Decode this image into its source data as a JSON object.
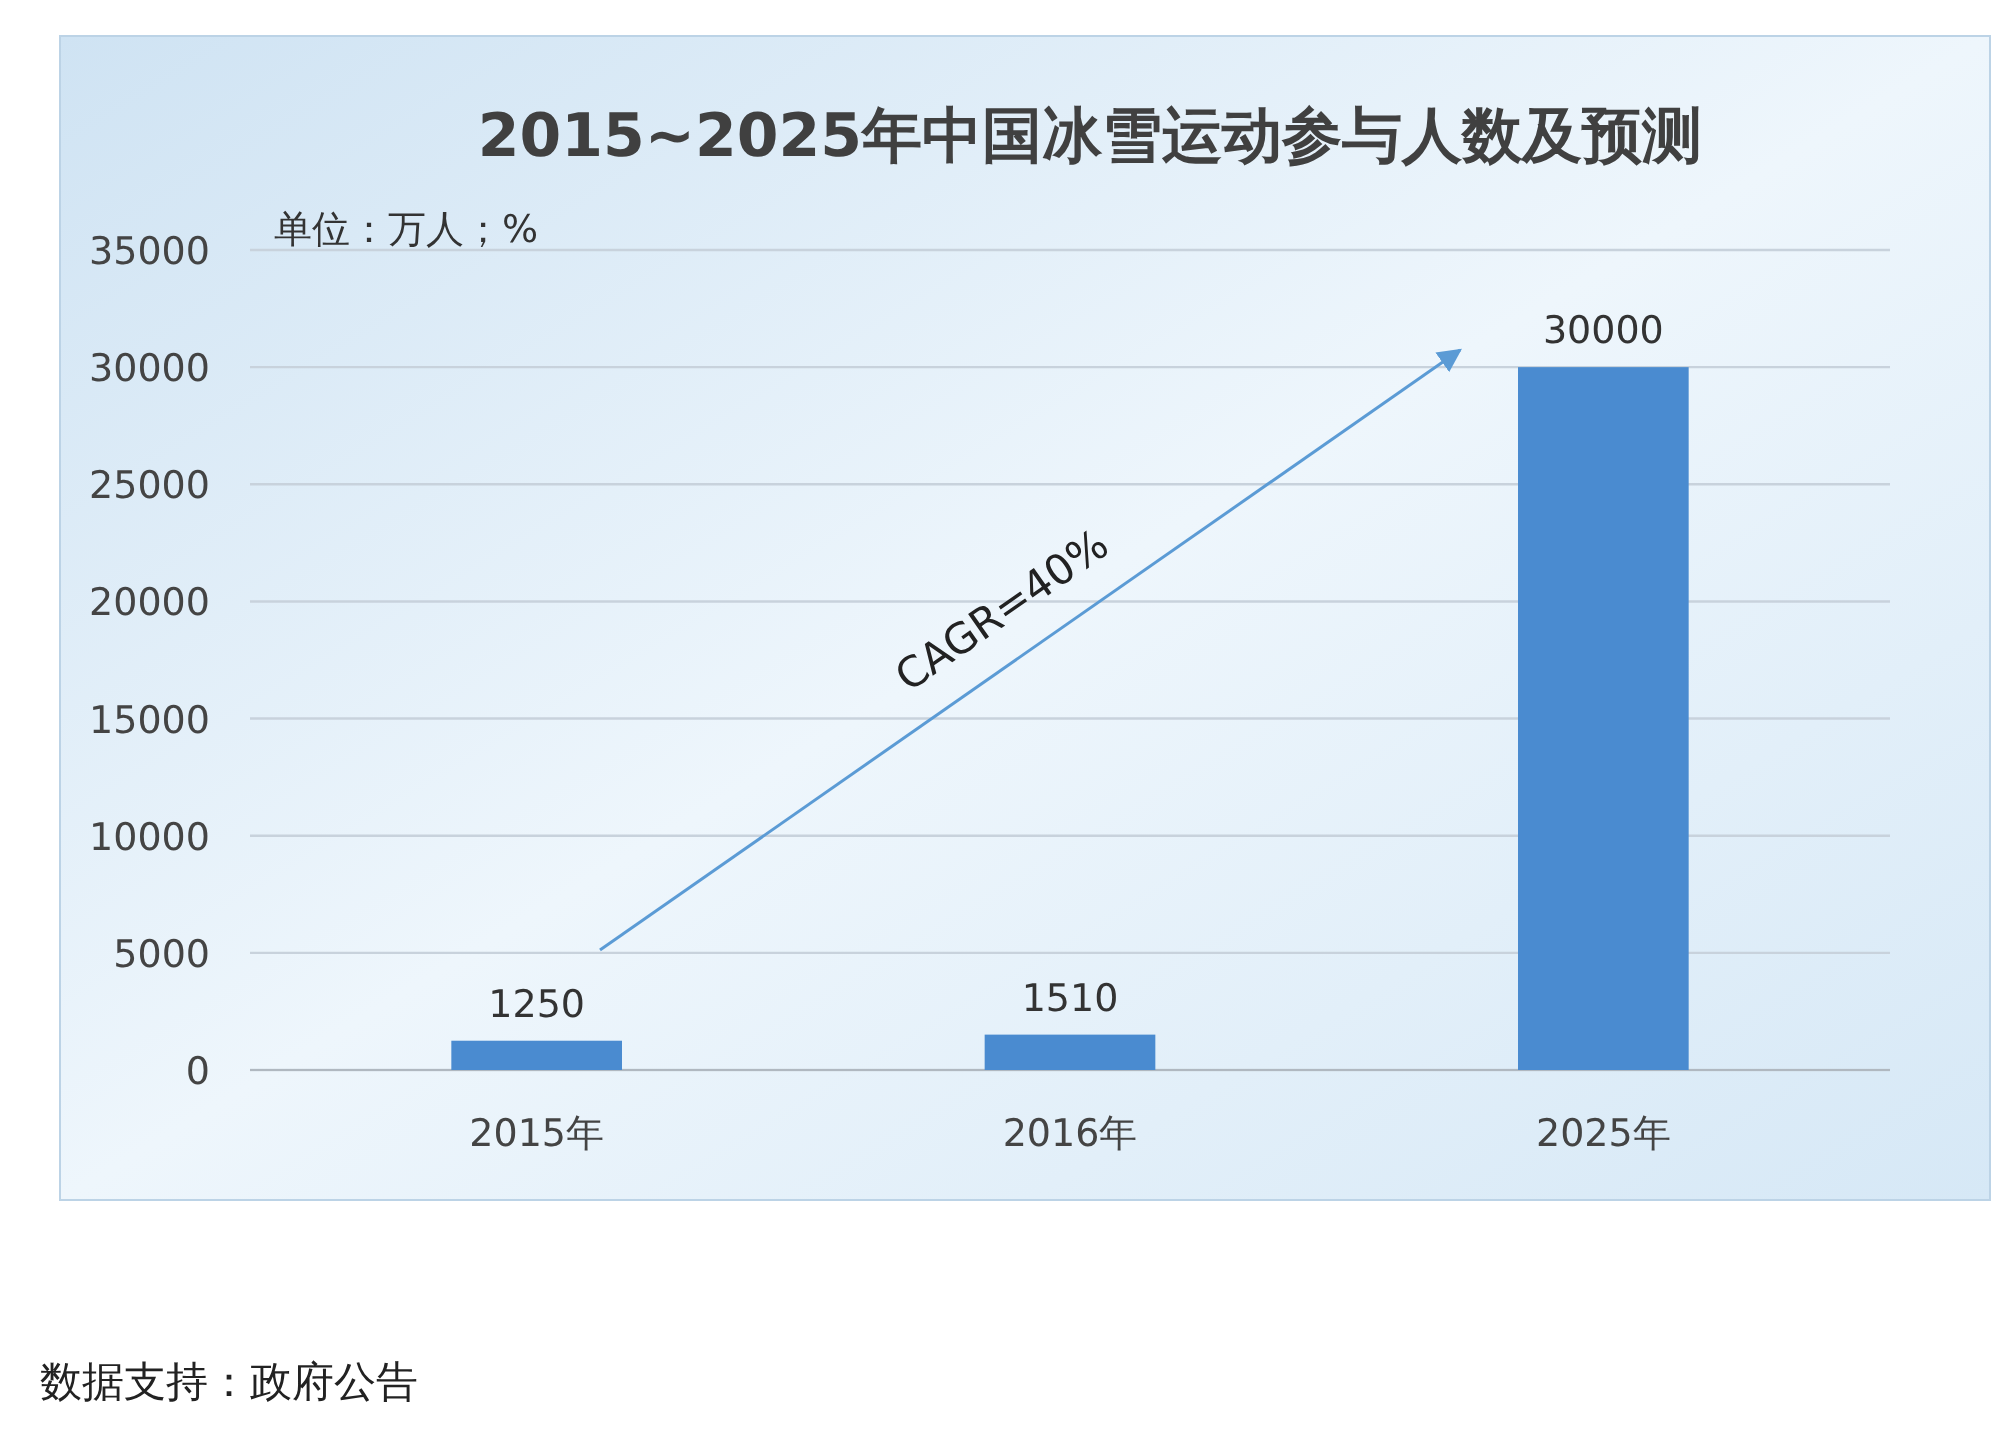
{
  "chart_data": {
    "type": "bar",
    "title": "2015~2025年中国冰雪运动参与人数及预测",
    "categories": [
      "2015年",
      "2016年",
      "2025年"
    ],
    "values": [
      1250,
      1510,
      30000
    ],
    "color": "#4a8bd0",
    "ylim": [
      0,
      35000
    ],
    "yticks": [
      0,
      5000,
      10000,
      15000,
      20000,
      25000,
      30000,
      35000
    ],
    "grid": "y",
    "data_labels": true,
    "annotations": [
      "CAGR=40%",
      "单位：万人；%",
      "数据支持：政府公告"
    ]
  }
}
